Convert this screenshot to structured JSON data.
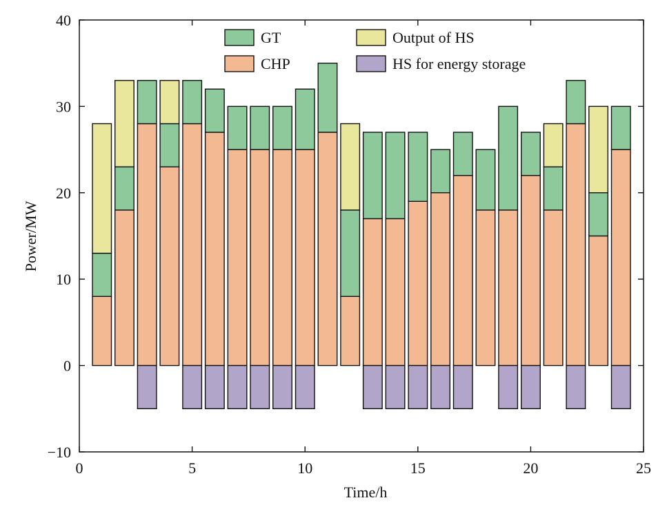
{
  "chart_data": {
    "type": "bar",
    "stacked": true,
    "xlabel": "Time/h",
    "ylabel": "Power/MW",
    "xlim": [
      0,
      25
    ],
    "ylim": [
      -10,
      40
    ],
    "xticks": [
      "0",
      "5",
      "10",
      "15",
      "20",
      "25"
    ],
    "yticks": [
      "−10",
      "0",
      "10",
      "20",
      "30",
      "40"
    ],
    "x": [
      1,
      2,
      3,
      4,
      5,
      6,
      7,
      8,
      9,
      10,
      11,
      12,
      13,
      14,
      15,
      16,
      17,
      18,
      19,
      20,
      21,
      22,
      23,
      24
    ],
    "series": [
      {
        "name": "CHP",
        "color": "#f2b992",
        "values": [
          8,
          18,
          28,
          23,
          28,
          27,
          25,
          25,
          25,
          25,
          27,
          8,
          17,
          17,
          19,
          20,
          22,
          18,
          18,
          22,
          18,
          28,
          15,
          25
        ]
      },
      {
        "name": "GT",
        "color": "#8ec99b",
        "values": [
          5,
          5,
          5,
          5,
          5,
          5,
          5,
          5,
          5,
          7,
          8,
          10,
          10,
          10,
          8,
          5,
          5,
          7,
          12,
          5,
          5,
          5,
          5,
          5
        ]
      },
      {
        "name": "Output of HS",
        "color": "#e8e79c",
        "values": [
          15,
          10,
          0,
          5,
          0,
          0,
          0,
          0,
          0,
          0,
          0,
          10,
          0,
          0,
          0,
          0,
          0,
          0,
          0,
          0,
          5,
          0,
          10,
          0
        ]
      },
      {
        "name": "HS for energy storage",
        "color": "#b1a6c9",
        "values": [
          0,
          0,
          -5,
          0,
          -5,
          -5,
          -5,
          -5,
          -5,
          -5,
          0,
          0,
          -5,
          -5,
          -5,
          -5,
          -5,
          0,
          -5,
          -5,
          0,
          -5,
          0,
          -5
        ]
      }
    ],
    "legend": {
      "placement": "top",
      "entries": [
        {
          "label": "GT",
          "color": "#8ec99b"
        },
        {
          "label": "Output of HS",
          "color": "#e8e79c"
        },
        {
          "label": "CHP",
          "color": "#f2b992"
        },
        {
          "label": "HS for energy storage",
          "color": "#b1a6c9"
        }
      ]
    },
    "grid": false
  }
}
